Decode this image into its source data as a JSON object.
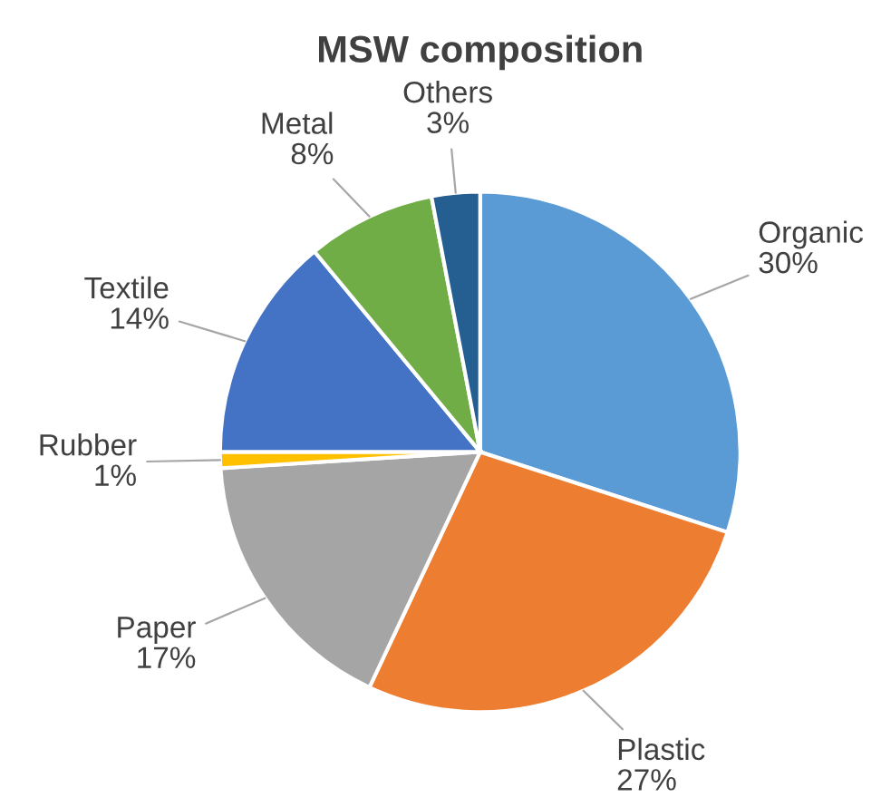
{
  "chart_data": {
    "type": "pie",
    "title": "MSW composition",
    "categories": [
      "Organic",
      "Plastic",
      "Paper",
      "Rubber",
      "Textile",
      "Metal",
      "Others"
    ],
    "values": [
      30,
      27,
      17,
      1,
      14,
      8,
      3
    ],
    "value_labels": [
      "30%",
      "27%",
      "17%",
      "1%",
      "14%",
      "8%",
      "3%"
    ],
    "colors": [
      "#5b9bd5",
      "#ed7d31",
      "#a5a5a5",
      "#ffc000",
      "#4472c4",
      "#70ad47",
      "#255e91"
    ],
    "legend": false
  }
}
